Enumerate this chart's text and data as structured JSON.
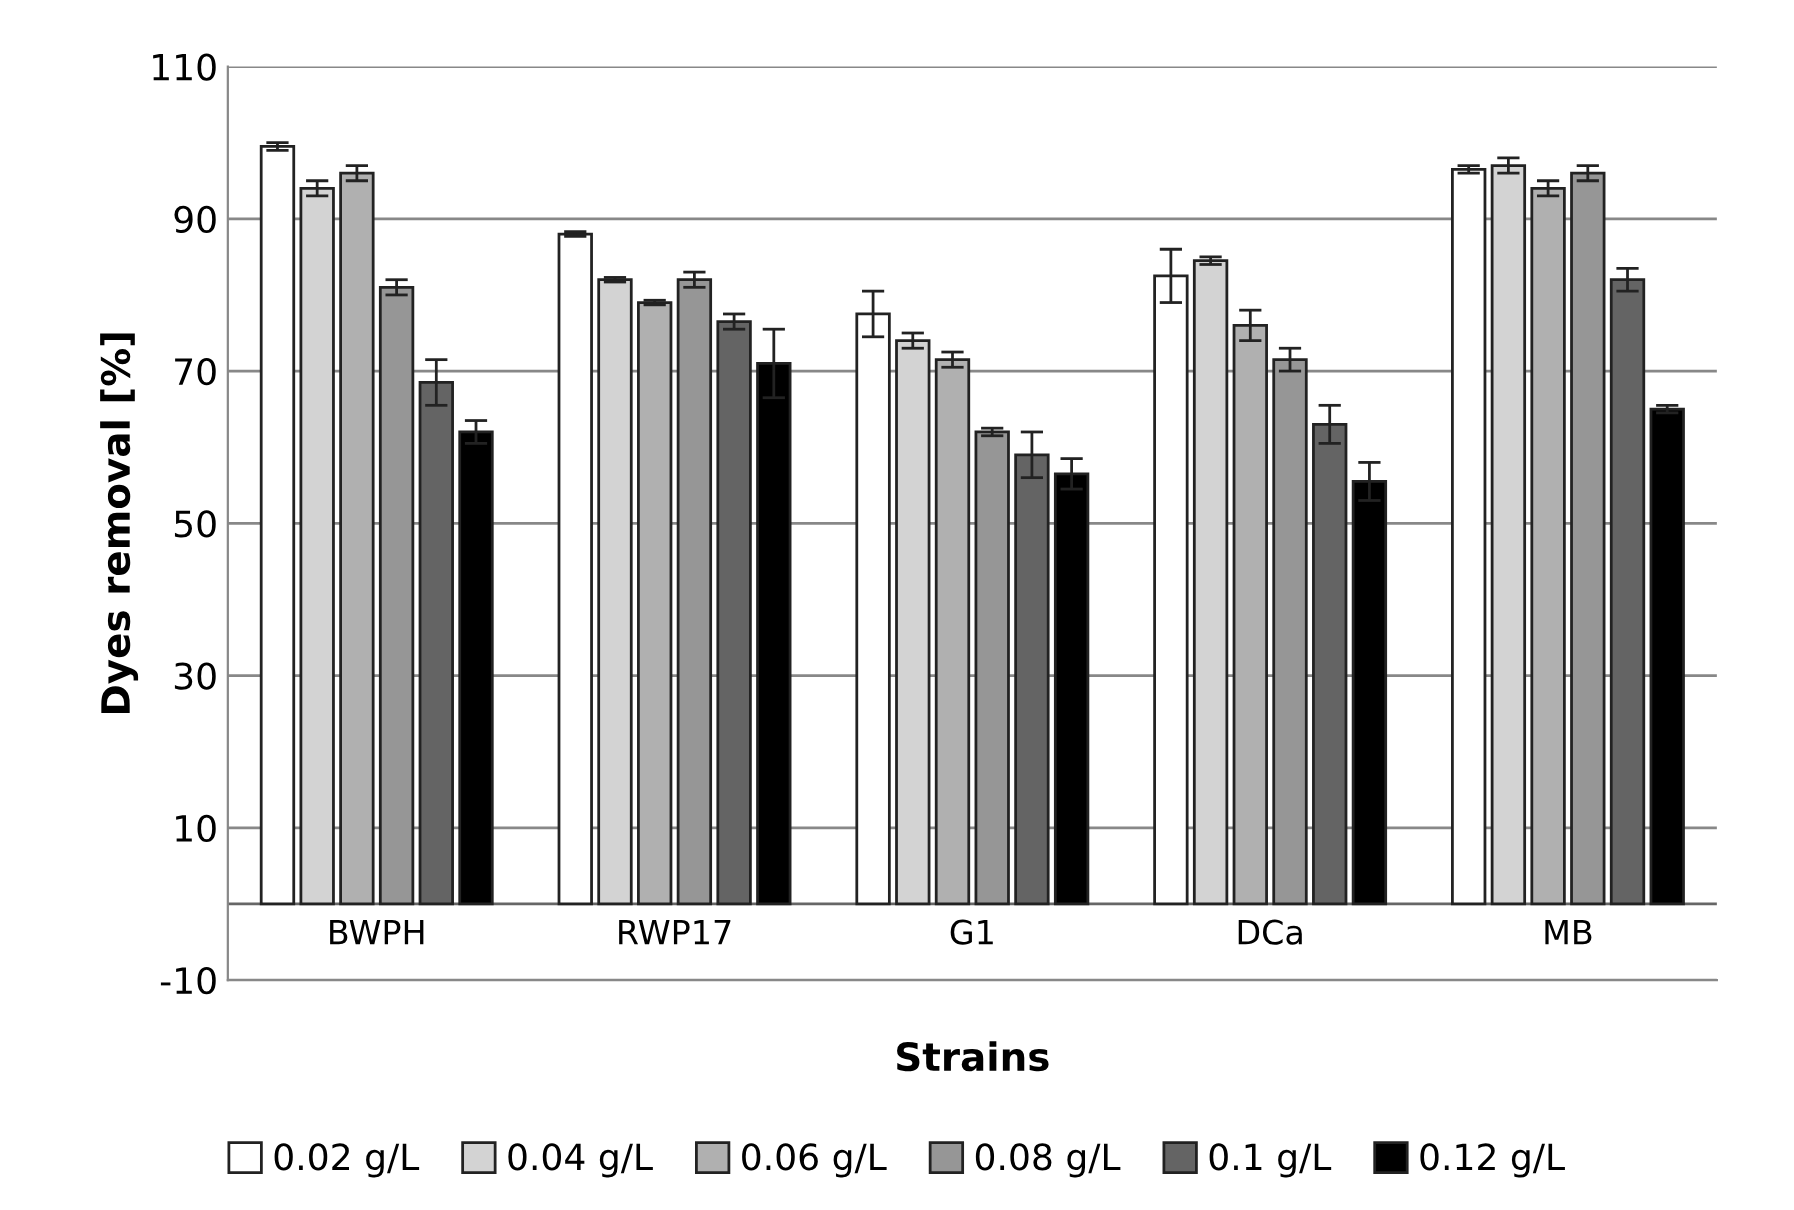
{
  "chart_data": {
    "type": "bar",
    "xlabel": "Strains",
    "ylabel": "Dyes removal [%]",
    "categories": [
      "BWPH",
      "RWP17",
      "G1",
      "DCa",
      "MB"
    ],
    "series": [
      {
        "name": "0.02 g/L",
        "color": "#ffffff",
        "values": [
          99.5,
          88,
          77.5,
          82.5,
          96.5
        ],
        "errors": [
          0.5,
          0.3,
          3,
          3.5,
          0.5
        ]
      },
      {
        "name": "0.04 g/L",
        "color": "#d3d3d3",
        "values": [
          94,
          82,
          74,
          84.5,
          97
        ],
        "errors": [
          1,
          0.3,
          1,
          0.5,
          1
        ]
      },
      {
        "name": "0.06 g/L",
        "color": "#b0b0b0",
        "values": [
          96,
          79,
          71.5,
          76,
          94
        ],
        "errors": [
          1,
          0.3,
          1,
          2,
          1
        ]
      },
      {
        "name": "0.08 g/L",
        "color": "#969696",
        "values": [
          81,
          82,
          62,
          71.5,
          96
        ],
        "errors": [
          1,
          1,
          0.5,
          1.5,
          1
        ]
      },
      {
        "name": "0.1 g/L",
        "color": "#646464",
        "values": [
          68.5,
          76.5,
          59,
          63,
          82
        ],
        "errors": [
          3,
          1,
          3,
          2.5,
          1.5
        ]
      },
      {
        "name": "0.12 g/L",
        "color": "#000000",
        "values": [
          62,
          71,
          56.5,
          55.5,
          65
        ],
        "errors": [
          1.5,
          4.5,
          2,
          2.5,
          0.5
        ]
      }
    ],
    "ylim": [
      -10,
      110
    ],
    "yticks": [
      -10,
      10,
      30,
      50,
      70,
      90,
      110
    ],
    "grid": "y",
    "legend": "bottom"
  }
}
